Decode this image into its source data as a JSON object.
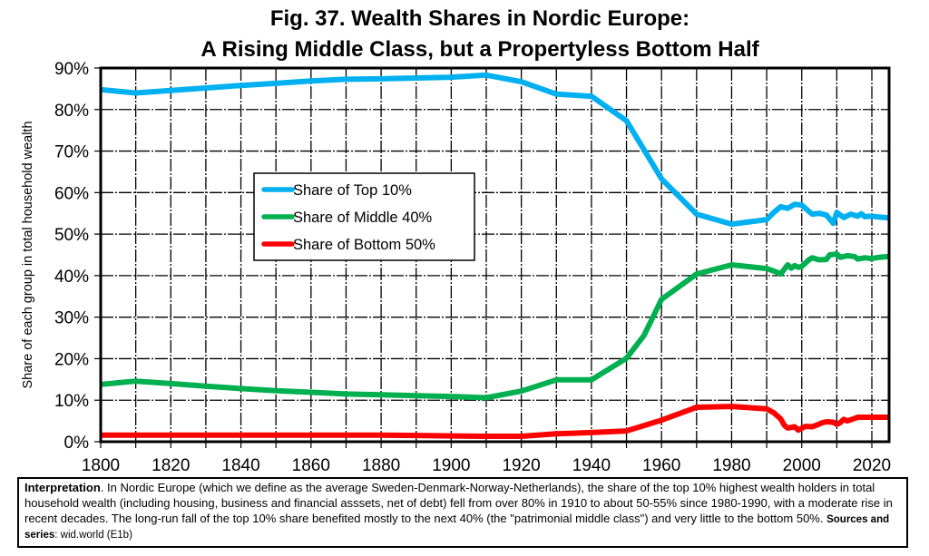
{
  "chart_data": {
    "type": "line",
    "title": "Fig. 37. Wealth Shares in Nordic Europe:",
    "subtitle": "A Rising Middle Class, but a Propertyless Bottom Half",
    "xlabel": "",
    "ylabel": "Share of each group in total household wealth",
    "xlim": [
      1800,
      2025
    ],
    "ylim": [
      0,
      90
    ],
    "x_ticks": [
      1800,
      1820,
      1840,
      1860,
      1880,
      1900,
      1920,
      1940,
      1960,
      1980,
      2000,
      2020
    ],
    "x_tick_labels": [
      "1800",
      "1820",
      "1840",
      "1860",
      "1880",
      "1900",
      "1920",
      "1940",
      "1960",
      "1980",
      "2000",
      "2020"
    ],
    "y_ticks": [
      0,
      10,
      20,
      30,
      40,
      50,
      60,
      70,
      80,
      90
    ],
    "y_tick_labels": [
      "0%",
      "10%",
      "20%",
      "30%",
      "40%",
      "50%",
      "60%",
      "70%",
      "80%",
      "90%"
    ],
    "grid": true,
    "legend_position": "center-left",
    "series": [
      {
        "name": "Share of Top 10%",
        "color": "#00b0f0",
        "points": [
          [
            1800,
            84.8
          ],
          [
            1810,
            84.0
          ],
          [
            1820,
            84.6
          ],
          [
            1830,
            85.2
          ],
          [
            1840,
            85.8
          ],
          [
            1850,
            86.3
          ],
          [
            1860,
            86.9
          ],
          [
            1870,
            87.3
          ],
          [
            1880,
            87.4
          ],
          [
            1890,
            87.6
          ],
          [
            1900,
            87.8
          ],
          [
            1910,
            88.3
          ],
          [
            1920,
            86.7
          ],
          [
            1930,
            83.7
          ],
          [
            1940,
            83.2
          ],
          [
            1950,
            77.3
          ],
          [
            1960,
            63.3
          ],
          [
            1970,
            54.8
          ],
          [
            1980,
            52.4
          ],
          [
            1990,
            53.5
          ],
          [
            1992,
            55.2
          ],
          [
            1994,
            56.6
          ],
          [
            1996,
            56.2
          ],
          [
            1998,
            57.2
          ],
          [
            2000,
            57.0
          ],
          [
            2002,
            55.5
          ],
          [
            2003,
            54.8
          ],
          [
            2005,
            55.0
          ],
          [
            2007,
            54.6
          ],
          [
            2009,
            52.6
          ],
          [
            2010,
            55.2
          ],
          [
            2012,
            54.0
          ],
          [
            2014,
            54.8
          ],
          [
            2016,
            54.3
          ],
          [
            2017,
            54.9
          ],
          [
            2018,
            54.2
          ],
          [
            2020,
            54.3
          ],
          [
            2022,
            54.1
          ],
          [
            2025,
            53.9
          ]
        ]
      },
      {
        "name": "Share of Middle 40%",
        "color": "#00b050",
        "points": [
          [
            1800,
            13.8
          ],
          [
            1810,
            14.6
          ],
          [
            1820,
            14.0
          ],
          [
            1830,
            13.4
          ],
          [
            1840,
            12.8
          ],
          [
            1850,
            12.3
          ],
          [
            1860,
            11.9
          ],
          [
            1870,
            11.5
          ],
          [
            1880,
            11.3
          ],
          [
            1890,
            11.1
          ],
          [
            1900,
            10.9
          ],
          [
            1910,
            10.6
          ],
          [
            1920,
            12.2
          ],
          [
            1930,
            14.9
          ],
          [
            1940,
            14.9
          ],
          [
            1950,
            20.1
          ],
          [
            1955,
            25.6
          ],
          [
            1960,
            34.3
          ],
          [
            1970,
            40.4
          ],
          [
            1980,
            42.6
          ],
          [
            1990,
            41.7
          ],
          [
            1993,
            40.8
          ],
          [
            1994,
            40.4
          ],
          [
            1996,
            42.6
          ],
          [
            1997,
            41.8
          ],
          [
            1998,
            42.4
          ],
          [
            1999,
            42.0
          ],
          [
            2000,
            42.2
          ],
          [
            2002,
            43.8
          ],
          [
            2003,
            44.3
          ],
          [
            2005,
            43.8
          ],
          [
            2007,
            43.9
          ],
          [
            2008,
            45.0
          ],
          [
            2010,
            45.2
          ],
          [
            2011,
            44.4
          ],
          [
            2013,
            44.8
          ],
          [
            2015,
            44.6
          ],
          [
            2016,
            44.0
          ],
          [
            2018,
            44.3
          ],
          [
            2020,
            44.1
          ],
          [
            2022,
            44.4
          ],
          [
            2025,
            44.6
          ]
        ]
      },
      {
        "name": "Share of Bottom 50%",
        "color": "#ff0000",
        "points": [
          [
            1800,
            1.6
          ],
          [
            1820,
            1.6
          ],
          [
            1840,
            1.6
          ],
          [
            1860,
            1.6
          ],
          [
            1880,
            1.6
          ],
          [
            1890,
            1.5
          ],
          [
            1900,
            1.4
          ],
          [
            1910,
            1.3
          ],
          [
            1920,
            1.3
          ],
          [
            1930,
            1.9
          ],
          [
            1940,
            2.2
          ],
          [
            1950,
            2.6
          ],
          [
            1960,
            5.2
          ],
          [
            1970,
            8.3
          ],
          [
            1980,
            8.5
          ],
          [
            1990,
            7.9
          ],
          [
            1992,
            7.0
          ],
          [
            1994,
            5.5
          ],
          [
            1995,
            4.0
          ],
          [
            1996,
            3.3
          ],
          [
            1998,
            3.6
          ],
          [
            1999,
            2.8
          ],
          [
            2001,
            3.7
          ],
          [
            2003,
            3.6
          ],
          [
            2004,
            3.9
          ],
          [
            2006,
            4.6
          ],
          [
            2007,
            4.8
          ],
          [
            2009,
            4.7
          ],
          [
            2010,
            4.2
          ],
          [
            2011,
            4.6
          ],
          [
            2012,
            5.4
          ],
          [
            2013,
            5.0
          ],
          [
            2015,
            5.6
          ],
          [
            2016,
            5.9
          ],
          [
            2018,
            5.9
          ],
          [
            2020,
            5.9
          ],
          [
            2025,
            5.9
          ]
        ]
      }
    ]
  },
  "note": {
    "lead": "Interpretation",
    "body": ". In Nordic Europe (which we define as the average Sweden-Denmark-Norway-Netherlands), the share of the top 10% highest wealth holders in total household wealth (including housing, business and financial asssets, net of debt) fell from over 80% in 1910 to about 50-55% since 1980-1990, with a moderate rise in recent decades. The long-run fall of the top 10% share benefited mostly to the next 40% (the \"patrimonial middle class\") and very little to the bottom 50%.  ",
    "sources_label": "Sources and series",
    "sources_value": ": wid.world (E1b)"
  }
}
